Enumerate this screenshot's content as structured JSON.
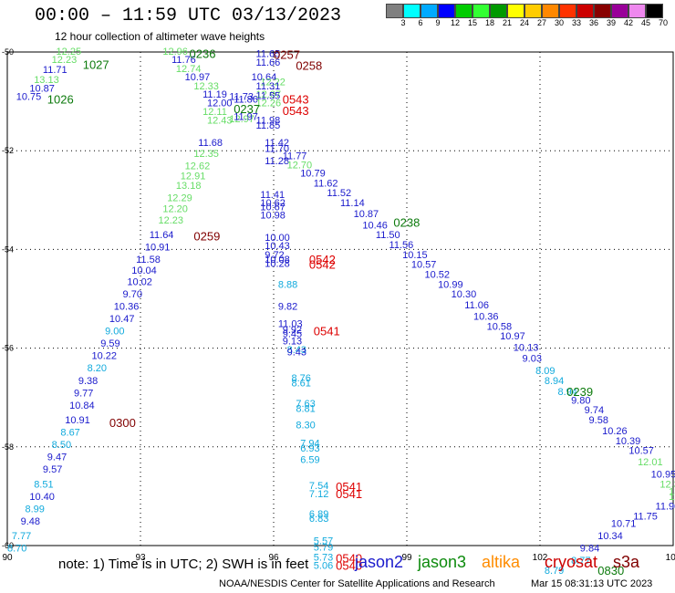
{
  "title": "00:00 – 11:59 UTC 03/13/2023",
  "subtitle": "12 hour collection of altimeter wave heights",
  "note": "note:  1) Time is in UTC;  2) SWH is in feet",
  "credit": "NOAA/NESDIS Center for Satellite Applications and Research",
  "generated": "Mar 15 08:31:13 UTC 2023",
  "satellites": [
    {
      "name": "jason2",
      "color": "#1a1acc"
    },
    {
      "name": "jason3",
      "color": "#0c8a0c"
    },
    {
      "name": "altika",
      "color": "#ff8c00"
    },
    {
      "name": "cryosat",
      "color": "#cc0000"
    },
    {
      "name": "s3a",
      "color": "#800000"
    }
  ],
  "colorbar": {
    "colors": [
      "#808080",
      "#00ffff",
      "#00aaff",
      "#0000ff",
      "#00cc00",
      "#33ff33",
      "#009900",
      "#ffff00",
      "#ffcc00",
      "#ff8800",
      "#ff3300",
      "#cc0000",
      "#880000",
      "#990099",
      "#ee88ee",
      "#000000"
    ],
    "labels": [
      "3",
      "6",
      "9",
      "12",
      "15",
      "18",
      "21",
      "24",
      "27",
      "30",
      "33",
      "36",
      "39",
      "42",
      "45",
      "70",
      "(ft)"
    ]
  },
  "chart_data": {
    "type": "scatter",
    "title": "00:00 – 11:59 UTC 03/13/2023",
    "xlim": [
      90,
      105
    ],
    "ylim": [
      -60,
      -50
    ],
    "x_ticks": [
      90,
      93,
      96,
      99,
      102,
      105
    ],
    "x_tick_labels": [
      "90",
      "93",
      "96",
      "99",
      "102",
      "105"
    ],
    "y_ticks": [
      -50,
      -52,
      -54,
      -56,
      -58,
      -60
    ],
    "y_tick_labels": [
      "-50",
      "-52",
      "-54",
      "-56",
      "-58",
      "-60"
    ],
    "grid": true,
    "points": [
      {
        "x": 91.1,
        "y": -49.98,
        "v": "12.25",
        "c": "#66dd66"
      },
      {
        "x": 91.0,
        "y": -50.15,
        "v": "12.23",
        "c": "#66dd66"
      },
      {
        "x": 90.8,
        "y": -50.35,
        "v": "11.71",
        "c": "#1a1acc"
      },
      {
        "x": 90.6,
        "y": -50.55,
        "v": "13.13",
        "c": "#66dd66"
      },
      {
        "x": 90.5,
        "y": -50.73,
        "v": "10.87",
        "c": "#1a1acc"
      },
      {
        "x": 90.2,
        "y": -50.9,
        "v": "10.75",
        "c": "#1a1acc"
      },
      {
        "x": 93.5,
        "y": -49.98,
        "v": "12.96",
        "c": "#66dd66"
      },
      {
        "x": 93.7,
        "y": -50.15,
        "v": "11.76",
        "c": "#1a1acc"
      },
      {
        "x": 93.8,
        "y": -50.33,
        "v": "12.74",
        "c": "#66dd66"
      },
      {
        "x": 94.0,
        "y": -50.5,
        "v": "10.97",
        "c": "#1a1acc"
      },
      {
        "x": 94.2,
        "y": -50.68,
        "v": "12.33",
        "c": "#66dd66"
      },
      {
        "x": 94.4,
        "y": -50.85,
        "v": "11.19",
        "c": "#1a1acc"
      },
      {
        "x": 94.5,
        "y": -51.03,
        "v": "12.00",
        "c": "#1a1acc"
      },
      {
        "x": 94.4,
        "y": -51.2,
        "v": "12.11",
        "c": "#66dd66"
      },
      {
        "x": 94.5,
        "y": -51.38,
        "v": "12.43",
        "c": "#66dd66"
      },
      {
        "x": 94.3,
        "y": -51.83,
        "v": "11.68",
        "c": "#1a1acc"
      },
      {
        "x": 94.2,
        "y": -52.05,
        "v": "12.35",
        "c": "#66dd66"
      },
      {
        "x": 94.0,
        "y": -52.3,
        "v": "12.62",
        "c": "#66dd66"
      },
      {
        "x": 93.9,
        "y": -52.5,
        "v": "12.91",
        "c": "#66dd66"
      },
      {
        "x": 93.8,
        "y": -52.7,
        "v": "13.18",
        "c": "#66dd66"
      },
      {
        "x": 93.6,
        "y": -52.95,
        "v": "12.29",
        "c": "#66dd66"
      },
      {
        "x": 93.5,
        "y": -53.17,
        "v": "12.20",
        "c": "#66dd66"
      },
      {
        "x": 93.4,
        "y": -53.4,
        "v": "12.23",
        "c": "#66dd66"
      },
      {
        "x": 93.2,
        "y": -53.7,
        "v": "11.64",
        "c": "#1a1acc"
      },
      {
        "x": 93.1,
        "y": -53.95,
        "v": "10.91",
        "c": "#1a1acc"
      },
      {
        "x": 92.9,
        "y": -54.2,
        "v": "11.58",
        "c": "#1a1acc"
      },
      {
        "x": 92.8,
        "y": -54.42,
        "v": "10.04",
        "c": "#1a1acc"
      },
      {
        "x": 92.7,
        "y": -54.65,
        "v": "10.02",
        "c": "#1a1acc"
      },
      {
        "x": 92.6,
        "y": -54.9,
        "v": "9.70",
        "c": "#1a1acc"
      },
      {
        "x": 92.4,
        "y": -55.15,
        "v": "10.36",
        "c": "#1a1acc"
      },
      {
        "x": 92.3,
        "y": -55.4,
        "v": "10.47",
        "c": "#1a1acc"
      },
      {
        "x": 92.2,
        "y": -55.65,
        "v": "9.00",
        "c": "#11aadd"
      },
      {
        "x": 92.1,
        "y": -55.9,
        "v": "9.59",
        "c": "#1a1acc"
      },
      {
        "x": 91.9,
        "y": -56.15,
        "v": "10.22",
        "c": "#1a1acc"
      },
      {
        "x": 91.8,
        "y": -56.4,
        "v": "8.20",
        "c": "#11aadd"
      },
      {
        "x": 91.6,
        "y": -56.65,
        "v": "9.38",
        "c": "#1a1acc"
      },
      {
        "x": 91.5,
        "y": -56.9,
        "v": "9.77",
        "c": "#1a1acc"
      },
      {
        "x": 91.4,
        "y": -57.15,
        "v": "10.84",
        "c": "#1a1acc"
      },
      {
        "x": 91.3,
        "y": -57.45,
        "v": "10.91",
        "c": "#1a1acc"
      },
      {
        "x": 91.2,
        "y": -57.7,
        "v": "8.67",
        "c": "#11aadd"
      },
      {
        "x": 91.0,
        "y": -57.95,
        "v": "8.50",
        "c": "#11aadd"
      },
      {
        "x": 90.9,
        "y": -58.2,
        "v": "9.47",
        "c": "#1a1acc"
      },
      {
        "x": 90.8,
        "y": -58.45,
        "v": "9.57",
        "c": "#1a1acc"
      },
      {
        "x": 90.6,
        "y": -58.75,
        "v": "8.51",
        "c": "#11aadd"
      },
      {
        "x": 90.5,
        "y": -59.0,
        "v": "10.40",
        "c": "#1a1acc"
      },
      {
        "x": 90.4,
        "y": -59.25,
        "v": "8.99",
        "c": "#11aadd"
      },
      {
        "x": 90.3,
        "y": -59.5,
        "v": "9.48",
        "c": "#1a1acc"
      },
      {
        "x": 90.1,
        "y": -59.8,
        "v": "7.77",
        "c": "#11aadd"
      },
      {
        "x": 90.0,
        "y": -60.05,
        "v": "8.70",
        "c": "#11aadd"
      },
      {
        "x": 95.6,
        "y": -50.03,
        "v": "11.65",
        "c": "#1a1acc"
      },
      {
        "x": 95.6,
        "y": -50.2,
        "v": "11.66",
        "c": "#1a1acc"
      },
      {
        "x": 95.5,
        "y": -50.5,
        "v": "10.64",
        "c": "#1a1acc"
      },
      {
        "x": 95.7,
        "y": -50.6,
        "v": "12.22",
        "c": "#66dd66"
      },
      {
        "x": 95.6,
        "y": -50.68,
        "v": "11.31",
        "c": "#1a1acc"
      },
      {
        "x": 95.6,
        "y": -50.85,
        "v": "12.07",
        "c": "#66dd66"
      },
      {
        "x": 95.6,
        "y": -50.88,
        "v": "11.55",
        "c": "#1a1acc"
      },
      {
        "x": 95.0,
        "y": -50.9,
        "v": "11.73",
        "c": "#1a1acc"
      },
      {
        "x": 95.1,
        "y": -50.95,
        "v": "11.86",
        "c": "#1a1acc"
      },
      {
        "x": 95.6,
        "y": -51.03,
        "v": "12.26",
        "c": "#66dd66"
      },
      {
        "x": 95.0,
        "y": -51.35,
        "v": "12.97",
        "c": "#66dd66"
      },
      {
        "x": 95.1,
        "y": -51.3,
        "v": "11.97",
        "c": "#1a1acc"
      },
      {
        "x": 95.6,
        "y": -51.38,
        "v": "11.98",
        "c": "#1a1acc"
      },
      {
        "x": 95.6,
        "y": -51.48,
        "v": "11.85",
        "c": "#1a1acc"
      },
      {
        "x": 95.8,
        "y": -51.83,
        "v": "11.42",
        "c": "#1a1acc"
      },
      {
        "x": 95.8,
        "y": -51.95,
        "v": "11.70",
        "c": "#1a1acc"
      },
      {
        "x": 96.2,
        "y": -52.1,
        "v": "11.77",
        "c": "#1a1acc"
      },
      {
        "x": 95.8,
        "y": -52.2,
        "v": "11.28",
        "c": "#1a1acc"
      },
      {
        "x": 96.3,
        "y": -52.28,
        "v": "12.70",
        "c": "#66dd66"
      },
      {
        "x": 96.6,
        "y": -52.45,
        "v": "10.79",
        "c": "#1a1acc"
      },
      {
        "x": 96.9,
        "y": -52.65,
        "v": "11.62",
        "c": "#1a1acc"
      },
      {
        "x": 97.2,
        "y": -52.85,
        "v": "11.52",
        "c": "#1a1acc"
      },
      {
        "x": 97.5,
        "y": -53.05,
        "v": "11.14",
        "c": "#1a1acc"
      },
      {
        "x": 97.8,
        "y": -53.27,
        "v": "10.87",
        "c": "#1a1acc"
      },
      {
        "x": 98.0,
        "y": -53.5,
        "v": "10.46",
        "c": "#1a1acc"
      },
      {
        "x": 98.3,
        "y": -53.7,
        "v": "11.50",
        "c": "#1a1acc"
      },
      {
        "x": 98.6,
        "y": -53.9,
        "v": "11.56",
        "c": "#1a1acc"
      },
      {
        "x": 98.9,
        "y": -54.1,
        "v": "10.15",
        "c": "#1a1acc"
      },
      {
        "x": 99.1,
        "y": -54.3,
        "v": "10.57",
        "c": "#1a1acc"
      },
      {
        "x": 99.4,
        "y": -54.5,
        "v": "10.52",
        "c": "#1a1acc"
      },
      {
        "x": 99.7,
        "y": -54.7,
        "v": "10.99",
        "c": "#1a1acc"
      },
      {
        "x": 100.0,
        "y": -54.9,
        "v": "10.30",
        "c": "#1a1acc"
      },
      {
        "x": 100.3,
        "y": -55.12,
        "v": "11.06",
        "c": "#1a1acc"
      },
      {
        "x": 100.5,
        "y": -55.35,
        "v": "10.36",
        "c": "#1a1acc"
      },
      {
        "x": 100.8,
        "y": -55.55,
        "v": "10.58",
        "c": "#1a1acc"
      },
      {
        "x": 101.1,
        "y": -55.75,
        "v": "10.97",
        "c": "#1a1acc"
      },
      {
        "x": 101.4,
        "y": -55.98,
        "v": "10.13",
        "c": "#1a1acc"
      },
      {
        "x": 101.6,
        "y": -56.2,
        "v": "9.03",
        "c": "#1a1acc"
      },
      {
        "x": 101.9,
        "y": -56.45,
        "v": "8.09",
        "c": "#11aadd"
      },
      {
        "x": 102.1,
        "y": -56.65,
        "v": "8.94",
        "c": "#11aadd"
      },
      {
        "x": 102.4,
        "y": -56.88,
        "v": "8.94",
        "c": "#11aadd"
      },
      {
        "x": 102.7,
        "y": -57.05,
        "v": "9.80",
        "c": "#1a1acc"
      },
      {
        "x": 103.0,
        "y": -57.25,
        "v": "9.74",
        "c": "#1a1acc"
      },
      {
        "x": 103.1,
        "y": -57.45,
        "v": "9.58",
        "c": "#1a1acc"
      },
      {
        "x": 103.4,
        "y": -57.67,
        "v": "10.26",
        "c": "#1a1acc"
      },
      {
        "x": 103.7,
        "y": -57.87,
        "v": "10.39",
        "c": "#1a1acc"
      },
      {
        "x": 104.0,
        "y": -58.07,
        "v": "10.57",
        "c": "#1a1acc"
      },
      {
        "x": 104.2,
        "y": -58.3,
        "v": "12.01",
        "c": "#66dd66"
      },
      {
        "x": 104.5,
        "y": -58.55,
        "v": "10.95",
        "c": "#1a1acc"
      },
      {
        "x": 104.7,
        "y": -58.75,
        "v": "12.30",
        "c": "#66dd66"
      },
      {
        "x": 104.9,
        "y": -59.0,
        "v": "12.37",
        "c": "#66dd66"
      },
      {
        "x": 105.1,
        "y": -59.25,
        "v": "11.97",
        "c": "#1a1acc"
      },
      {
        "x": 105.3,
        "y": -59.4,
        "v": "13.09",
        "c": "#66dd66"
      },
      {
        "x": 95.7,
        "y": -52.88,
        "v": "11.41",
        "c": "#1a1acc"
      },
      {
        "x": 95.7,
        "y": -53.05,
        "v": "10.62",
        "c": "#1a1acc"
      },
      {
        "x": 95.7,
        "y": -53.13,
        "v": "10.67",
        "c": "#1a1acc"
      },
      {
        "x": 95.7,
        "y": -53.3,
        "v": "10.98",
        "c": "#1a1acc"
      },
      {
        "x": 95.8,
        "y": -53.75,
        "v": "10.00",
        "c": "#1a1acc"
      },
      {
        "x": 95.8,
        "y": -53.92,
        "v": "10.43",
        "c": "#1a1acc"
      },
      {
        "x": 95.8,
        "y": -54.1,
        "v": "9.72",
        "c": "#1a1acc"
      },
      {
        "x": 95.8,
        "y": -54.2,
        "v": "10.08",
        "c": "#1a1acc"
      },
      {
        "x": 95.8,
        "y": -54.28,
        "v": "10.28",
        "c": "#1a1acc"
      },
      {
        "x": 96.1,
        "y": -54.7,
        "v": "8.88",
        "c": "#11aadd"
      },
      {
        "x": 96.1,
        "y": -55.15,
        "v": "9.82",
        "c": "#1a1acc"
      },
      {
        "x": 96.1,
        "y": -55.5,
        "v": "11.03",
        "c": "#1a1acc"
      },
      {
        "x": 96.2,
        "y": -55.62,
        "v": "9.92",
        "c": "#1a1acc"
      },
      {
        "x": 96.2,
        "y": -55.7,
        "v": "9.45",
        "c": "#1a1acc"
      },
      {
        "x": 96.2,
        "y": -55.85,
        "v": "9.13",
        "c": "#1a1acc"
      },
      {
        "x": 96.3,
        "y": -56.03,
        "v": "8.43",
        "c": "#11aadd"
      },
      {
        "x": 96.3,
        "y": -56.07,
        "v": "9.43",
        "c": "#1a1acc"
      },
      {
        "x": 96.4,
        "y": -56.6,
        "v": "8.76",
        "c": "#11aadd"
      },
      {
        "x": 96.4,
        "y": -56.7,
        "v": "8.61",
        "c": "#11aadd"
      },
      {
        "x": 96.5,
        "y": -57.12,
        "v": "7.63",
        "c": "#11aadd"
      },
      {
        "x": 96.5,
        "y": -57.22,
        "v": "8.81",
        "c": "#11aadd"
      },
      {
        "x": 96.5,
        "y": -57.55,
        "v": "8.30",
        "c": "#11aadd"
      },
      {
        "x": 96.6,
        "y": -57.92,
        "v": "7.94",
        "c": "#11aadd"
      },
      {
        "x": 96.6,
        "y": -58.02,
        "v": "6.93",
        "c": "#11aadd"
      },
      {
        "x": 96.6,
        "y": -58.25,
        "v": "6.59",
        "c": "#11aadd"
      },
      {
        "x": 96.8,
        "y": -58.78,
        "v": "7.54",
        "c": "#11aadd"
      },
      {
        "x": 96.8,
        "y": -58.95,
        "v": "7.12",
        "c": "#11aadd"
      },
      {
        "x": 96.8,
        "y": -59.35,
        "v": "6.89",
        "c": "#11aadd"
      },
      {
        "x": 96.8,
        "y": -59.45,
        "v": "6.83",
        "c": "#11aadd"
      },
      {
        "x": 96.9,
        "y": -59.9,
        "v": "5.57",
        "c": "#11aadd"
      },
      {
        "x": 96.9,
        "y": -60.03,
        "v": "5.79",
        "c": "#11aadd"
      },
      {
        "x": 96.9,
        "y": -60.23,
        "v": "5.73",
        "c": "#11aadd"
      },
      {
        "x": 96.9,
        "y": -60.4,
        "v": "5.06",
        "c": "#11aadd"
      },
      {
        "x": 102.1,
        "y": -60.5,
        "v": "8.79",
        "c": "#11aadd"
      },
      {
        "x": 102.7,
        "y": -60.3,
        "v": "8.77",
        "c": "#11aadd"
      },
      {
        "x": 102.9,
        "y": -60.05,
        "v": "9.84",
        "c": "#1a1acc"
      },
      {
        "x": 103.3,
        "y": -59.8,
        "v": "10.34",
        "c": "#1a1acc"
      },
      {
        "x": 103.6,
        "y": -59.55,
        "v": "10.71",
        "c": "#1a1acc"
      },
      {
        "x": 104.1,
        "y": -59.4,
        "v": "11.75",
        "c": "#1a1acc"
      },
      {
        "x": 104.6,
        "y": -59.2,
        "v": "11.90",
        "c": "#1a1acc"
      },
      {
        "x": 104.9,
        "y": -58.9,
        "v": "13.19",
        "c": "#66dd66"
      }
    ],
    "time_labels": [
      {
        "x": 91.7,
        "y": -50.25,
        "t": "1027",
        "c": "#0c7a0c"
      },
      {
        "x": 90.9,
        "y": -50.95,
        "t": "1026",
        "c": "#0c7a0c"
      },
      {
        "x": 94.1,
        "y": -50.03,
        "t": "0236",
        "c": "#0c7a0c"
      },
      {
        "x": 96.0,
        "y": -50.05,
        "t": "0257",
        "c": "#800000"
      },
      {
        "x": 96.5,
        "y": -50.27,
        "t": "0258",
        "c": "#800000"
      },
      {
        "x": 96.2,
        "y": -50.95,
        "t": "0543",
        "c": "#dd0000"
      },
      {
        "x": 96.2,
        "y": -51.18,
        "t": "0543",
        "c": "#dd0000"
      },
      {
        "x": 95.1,
        "y": -51.15,
        "t": "0237",
        "c": "#0c7a0c"
      },
      {
        "x": 94.2,
        "y": -53.72,
        "t": "0259",
        "c": "#800000"
      },
      {
        "x": 98.7,
        "y": -53.45,
        "t": "0238",
        "c": "#0c7a0c"
      },
      {
        "x": 96.8,
        "y": -54.2,
        "t": "0542",
        "c": "#dd0000"
      },
      {
        "x": 96.8,
        "y": -54.3,
        "t": "0542",
        "c": "#dd0000"
      },
      {
        "x": 96.9,
        "y": -55.65,
        "t": "0541",
        "c": "#dd0000"
      },
      {
        "x": 92.3,
        "y": -57.5,
        "t": "0300",
        "c": "#800000"
      },
      {
        "x": 102.6,
        "y": -56.88,
        "t": "0239",
        "c": "#0c7a0c"
      },
      {
        "x": 97.4,
        "y": -58.8,
        "t": "0541",
        "c": "#dd0000"
      },
      {
        "x": 97.4,
        "y": -58.95,
        "t": "0541",
        "c": "#dd0000"
      },
      {
        "x": 97.4,
        "y": -60.25,
        "t": "0540",
        "c": "#dd0000"
      },
      {
        "x": 97.4,
        "y": -60.4,
        "t": "0540",
        "c": "#dd0000"
      },
      {
        "x": 103.3,
        "y": -60.5,
        "t": "0830",
        "c": "#0c7a0c"
      }
    ]
  }
}
